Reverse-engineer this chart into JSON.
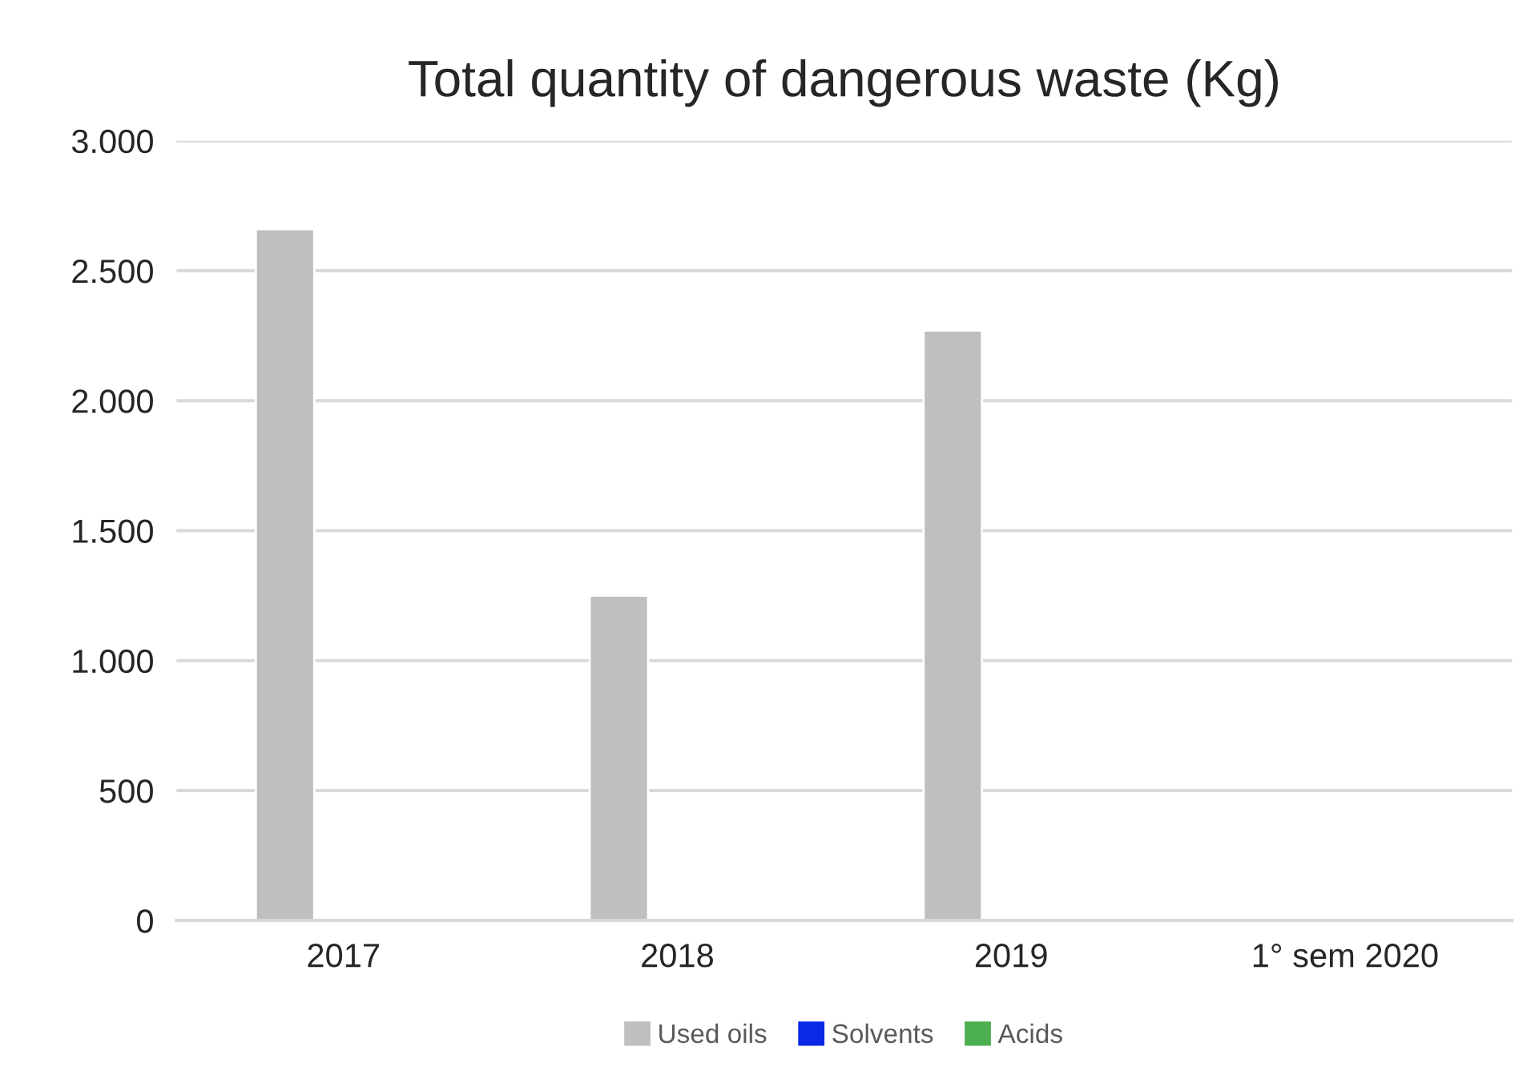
{
  "chart_data": {
    "type": "bar",
    "title": "Total quantity of dangerous waste (Kg)",
    "categories": [
      "2017",
      "2018",
      "2019",
      "1° sem 2020"
    ],
    "series": [
      {
        "name": "Used oils",
        "color": "#bfbfbf",
        "values": [
          2660,
          1250,
          2270,
          null
        ]
      },
      {
        "name": "Solvents",
        "color": "#0a28e6",
        "values": [
          null,
          null,
          null,
          null
        ]
      },
      {
        "name": "Acids",
        "color": "#4caf50",
        "values": [
          null,
          null,
          null,
          null
        ]
      }
    ],
    "ylim": [
      0,
      3000
    ],
    "yticks": [
      0,
      500,
      {
        "value": 1000,
        "label": "1.000"
      },
      {
        "value": 1500,
        "label": "1.500"
      },
      {
        "value": 2000,
        "label": "2.000"
      },
      {
        "value": 2500,
        "label": "2.500"
      },
      {
        "value": 3000,
        "label": "3.000"
      }
    ],
    "grid": "y",
    "legend": "bottom"
  }
}
